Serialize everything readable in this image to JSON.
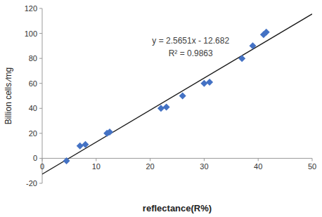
{
  "chart_data": {
    "type": "scatter",
    "xlabel": "reflectance(R%)",
    "ylabel": "Billion cells ∕mg",
    "annotations": [
      "y = 2.5651x - 12.682",
      "R² = 0.9863"
    ],
    "xlim": [
      0,
      50
    ],
    "ylim": [
      -20,
      120
    ],
    "xticks": [
      0,
      10,
      20,
      30,
      40,
      50
    ],
    "yticks": [
      -20,
      0,
      20,
      40,
      60,
      80,
      100,
      120
    ],
    "grid": false,
    "series": [
      {
        "type": "scatter",
        "marker": "diamond",
        "color": "#4472C4",
        "x": [
          4.5,
          7,
          8,
          12,
          12.5,
          22,
          23,
          26,
          30,
          31,
          37,
          39,
          41,
          41.5
        ],
        "values": [
          -2,
          10,
          11,
          20,
          21,
          40,
          41,
          50,
          60,
          61,
          80,
          90,
          99,
          101
        ]
      },
      {
        "type": "line",
        "line_style": "solid",
        "color": "#1a1a1a",
        "x": [
          0,
          50
        ],
        "values": [
          -12.682,
          115.573
        ]
      }
    ]
  }
}
